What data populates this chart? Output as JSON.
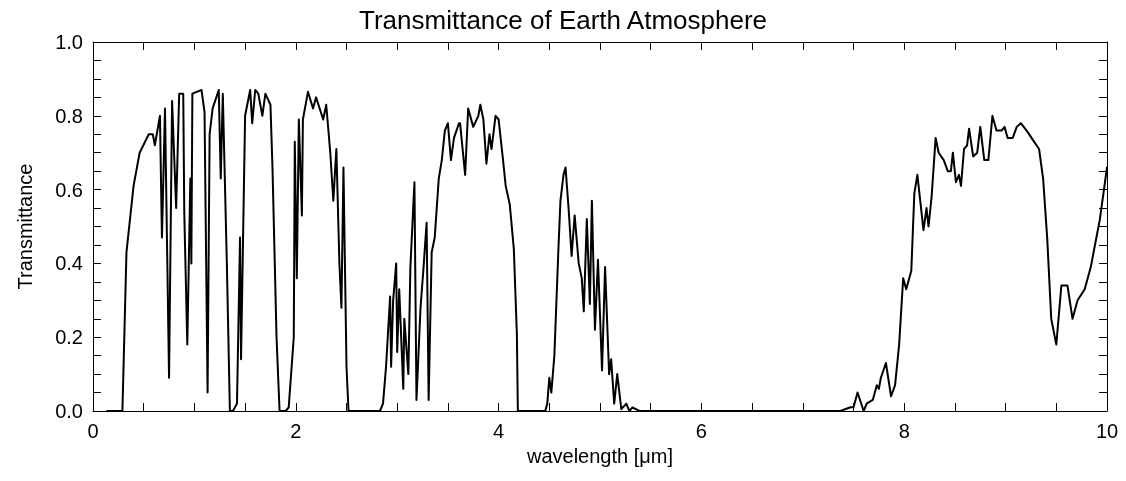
{
  "chart_data": {
    "type": "line",
    "title": "Transmittance of Earth Atmosphere",
    "xlabel": "wavelength [μm]",
    "ylabel": "Transmittance",
    "xlim": [
      0,
      10
    ],
    "ylim": [
      0,
      1
    ],
    "xticks": [
      0,
      {
        "value": 0.5,
        "label": null
      },
      {
        "value": 1,
        "label": null
      },
      {
        "value": 1.5,
        "label": null
      },
      2,
      {
        "value": 2.5,
        "label": null
      },
      {
        "value": 3,
        "label": null
      },
      {
        "value": 3.5,
        "label": null
      },
      4,
      {
        "value": 4.5,
        "label": null
      },
      {
        "value": 5,
        "label": null
      },
      {
        "value": 5.5,
        "label": null
      },
      6,
      {
        "value": 6.5,
        "label": null
      },
      {
        "value": 7,
        "label": null
      },
      {
        "value": 7.5,
        "label": null
      },
      8,
      {
        "value": 8.5,
        "label": null
      },
      {
        "value": 9,
        "label": null
      },
      {
        "value": 9.5,
        "label": null
      },
      10
    ],
    "yticks": [
      {
        "value": 0,
        "label": "0.0"
      },
      {
        "value": 0.05,
        "label": null
      },
      {
        "value": 0.1,
        "label": null
      },
      {
        "value": 0.15,
        "label": null
      },
      {
        "value": 0.2,
        "label": "0.2"
      },
      {
        "value": 0.25,
        "label": null
      },
      {
        "value": 0.3,
        "label": null
      },
      {
        "value": 0.35,
        "label": null
      },
      {
        "value": 0.4,
        "label": "0.4"
      },
      {
        "value": 0.45,
        "label": null
      },
      {
        "value": 0.5,
        "label": null
      },
      {
        "value": 0.55,
        "label": null
      },
      {
        "value": 0.6,
        "label": "0.6"
      },
      {
        "value": 0.65,
        "label": null
      },
      {
        "value": 0.7,
        "label": null
      },
      {
        "value": 0.75,
        "label": null
      },
      {
        "value": 0.8,
        "label": "0.8"
      },
      {
        "value": 0.85,
        "label": null
      },
      {
        "value": 0.9,
        "label": null
      },
      {
        "value": 0.95,
        "label": null
      },
      {
        "value": 1,
        "label": "1.0"
      }
    ],
    "series": [
      {
        "color": "#000000",
        "x": [
          0.14,
          0.29,
          0.33,
          0.4,
          0.46,
          0.55,
          0.59,
          0.61,
          0.66,
          0.68,
          0.71,
          0.75,
          0.78,
          0.82,
          0.85,
          0.89,
          0.9,
          0.93,
          0.96,
          0.97,
          0.98,
          1.07,
          1.1,
          1.13,
          1.15,
          1.18,
          1.24,
          1.26,
          1.28,
          1.32,
          1.35,
          1.38,
          1.42,
          1.45,
          1.46,
          1.5,
          1.55,
          1.57,
          1.6,
          1.63,
          1.67,
          1.7,
          1.75,
          1.77,
          1.81,
          1.84,
          1.9,
          1.93,
          1.98,
          1.99,
          2.01,
          2.03,
          2.06,
          2.07,
          2.12,
          2.17,
          2.2,
          2.27,
          2.3,
          2.34,
          2.37,
          2.4,
          2.43,
          2.45,
          2.47,
          2.5,
          2.52,
          2.83,
          2.86,
          2.89,
          2.93,
          2.94,
          2.96,
          2.99,
          3.0,
          3.02,
          3.06,
          3.07,
          3.11,
          3.13,
          3.17,
          3.19,
          3.23,
          3.26,
          3.29,
          3.31,
          3.34,
          3.37,
          3.41,
          3.44,
          3.47,
          3.5,
          3.53,
          3.56,
          3.61,
          3.62,
          3.67,
          3.7,
          3.75,
          3.8,
          3.82,
          3.85,
          3.88,
          3.91,
          3.93,
          3.97,
          4.0,
          4.04,
          4.07,
          4.11,
          4.15,
          4.18,
          4.19,
          4.46,
          4.48,
          4.5,
          4.52,
          4.55,
          4.59,
          4.61,
          4.64,
          4.66,
          4.69,
          4.72,
          4.75,
          4.79,
          4.82,
          4.84,
          4.87,
          4.9,
          4.92,
          4.95,
          4.98,
          5.02,
          5.05,
          5.09,
          5.11,
          5.14,
          5.17,
          5.21,
          5.26,
          5.29,
          5.32,
          5.39,
          7.37,
          7.47,
          7.5,
          7.54,
          7.6,
          7.63,
          7.69,
          7.73,
          7.75,
          7.77,
          7.82,
          7.87,
          7.91,
          7.95,
          7.99,
          8.02,
          8.07,
          8.1,
          8.13,
          8.19,
          8.22,
          8.24,
          8.27,
          8.31,
          8.34,
          8.39,
          8.43,
          8.46,
          8.48,
          8.51,
          8.54,
          8.56,
          8.59,
          8.62,
          8.64,
          8.68,
          8.72,
          8.75,
          8.79,
          8.83,
          8.87,
          8.91,
          8.96,
          8.99,
          9.02,
          9.07,
          9.11,
          9.15,
          9.22,
          9.28,
          9.33,
          9.37,
          9.41,
          9.45,
          9.5,
          9.55,
          9.61,
          9.66,
          9.71,
          9.78,
          9.84,
          9.93,
          10.0
        ],
        "values": [
          0,
          0,
          0.43,
          0.61,
          0.7,
          0.75,
          0.75,
          0.72,
          0.8,
          0.47,
          0.82,
          0.09,
          0.84,
          0.55,
          0.86,
          0.86,
          0.54,
          0.18,
          0.63,
          0.4,
          0.86,
          0.87,
          0.81,
          0.05,
          0.75,
          0.82,
          0.87,
          0.63,
          0.86,
          0.4,
          0,
          0,
          0.02,
          0.47,
          0.14,
          0.8,
          0.87,
          0.78,
          0.87,
          0.86,
          0.8,
          0.86,
          0.83,
          0.66,
          0.2,
          0,
          0,
          0.01,
          0.2,
          0.73,
          0.36,
          0.79,
          0.53,
          0.79,
          0.865,
          0.82,
          0.85,
          0.79,
          0.83,
          0.7,
          0.57,
          0.71,
          0.4,
          0.28,
          0.66,
          0.12,
          0,
          0,
          0.02,
          0.12,
          0.31,
          0.12,
          0.3,
          0.4,
          0.16,
          0.33,
          0.06,
          0.25,
          0.1,
          0.39,
          0.62,
          0.03,
          0.28,
          0.39,
          0.51,
          0.03,
          0.43,
          0.47,
          0.63,
          0.68,
          0.76,
          0.78,
          0.68,
          0.74,
          0.78,
          0.78,
          0.64,
          0.82,
          0.77,
          0.8,
          0.83,
          0.79,
          0.67,
          0.75,
          0.71,
          0.8,
          0.79,
          0.69,
          0.61,
          0.56,
          0.44,
          0.21,
          0,
          0,
          0.02,
          0.09,
          0.05,
          0.15,
          0.44,
          0.57,
          0.64,
          0.66,
          0.55,
          0.42,
          0.53,
          0.4,
          0.36,
          0.27,
          0.52,
          0.29,
          0.57,
          0.22,
          0.41,
          0.11,
          0.39,
          0.1,
          0.14,
          0.02,
          0.1,
          0.005,
          0.02,
          0,
          0.01,
          0,
          0,
          0.01,
          0.01,
          0.05,
          0,
          0.02,
          0.03,
          0.07,
          0.06,
          0.09,
          0.13,
          0.04,
          0.07,
          0.18,
          0.36,
          0.33,
          0.38,
          0.59,
          0.64,
          0.49,
          0.55,
          0.5,
          0.58,
          0.74,
          0.7,
          0.68,
          0.65,
          0.65,
          0.7,
          0.62,
          0.64,
          0.61,
          0.71,
          0.72,
          0.765,
          0.69,
          0.7,
          0.77,
          0.68,
          0.68,
          0.8,
          0.76,
          0.76,
          0.77,
          0.74,
          0.74,
          0.77,
          0.78,
          0.755,
          0.73,
          0.71,
          0.63,
          0.47,
          0.25,
          0.18,
          0.34,
          0.34,
          0.25,
          0.3,
          0.33,
          0.39,
          0.52,
          0.66
        ]
      }
    ]
  }
}
